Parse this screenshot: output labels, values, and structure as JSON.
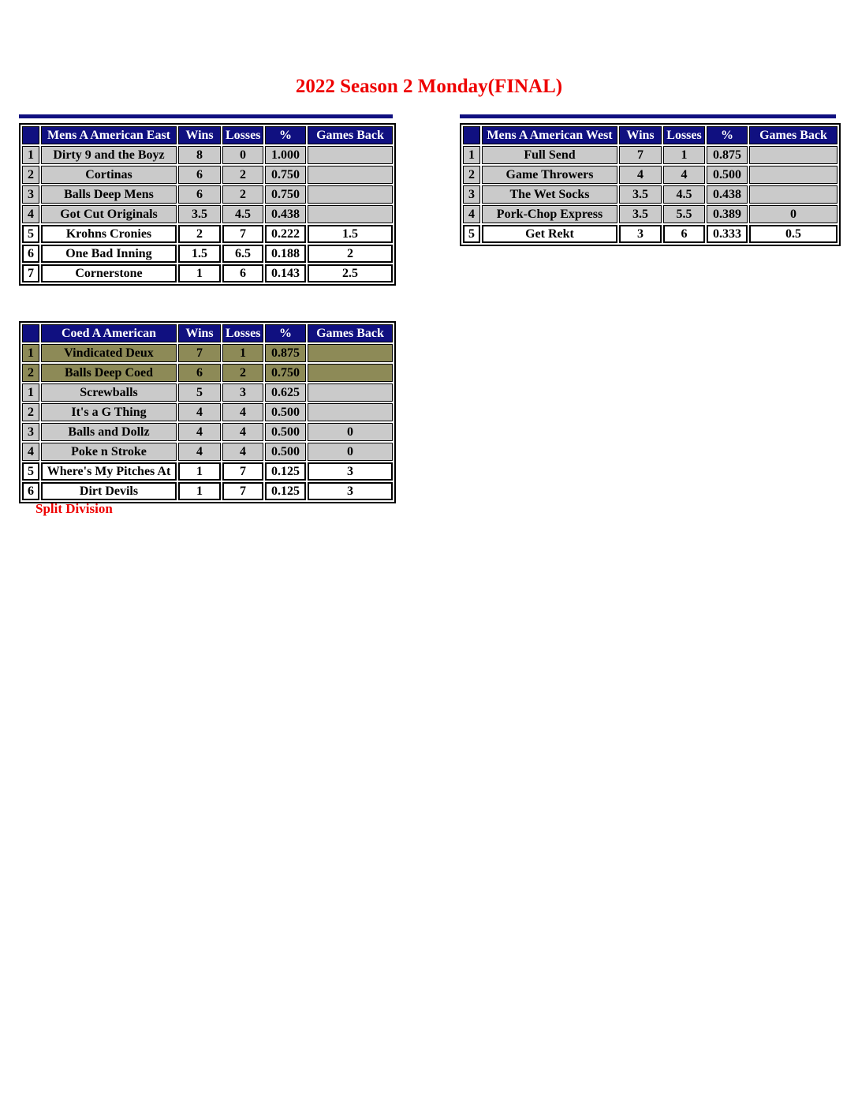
{
  "title": "2022 Season 2 Monday(FINAL)",
  "footnote": "Split Division",
  "colors": {
    "header_bg": "#101080",
    "header_text": "#ffffff",
    "row_gray": "#cacaca",
    "row_olive": "#8d8a57",
    "row_white": "#ffffff",
    "accent_red": "#ee0000",
    "border": "#000000"
  },
  "column_headers": {
    "wins": "Wins",
    "losses": "Losses",
    "pct": "%",
    "games_back": "Games Back"
  },
  "tables": [
    {
      "id": "east",
      "name": "Mens A American East",
      "top_strip": true,
      "rows": [
        {
          "rank": "1",
          "team": "Dirty 9 and the Boyz",
          "wins": "8",
          "losses": "0",
          "pct": "1.000",
          "games_back": "",
          "style": "gray"
        },
        {
          "rank": "2",
          "team": "Cortinas",
          "wins": "6",
          "losses": "2",
          "pct": "0.750",
          "games_back": "",
          "style": "gray"
        },
        {
          "rank": "3",
          "team": "Balls Deep Mens",
          "wins": "6",
          "losses": "2",
          "pct": "0.750",
          "games_back": "",
          "style": "gray"
        },
        {
          "rank": "4",
          "team": "Got Cut Originals",
          "wins": "3.5",
          "losses": "4.5",
          "pct": "0.438",
          "games_back": "",
          "style": "gray"
        },
        {
          "rank": "5",
          "team": "Krohns Cronies",
          "wins": "2",
          "losses": "7",
          "pct": "0.222",
          "games_back": "1.5",
          "style": "white"
        },
        {
          "rank": "6",
          "team": "One Bad Inning",
          "wins": "1.5",
          "losses": "6.5",
          "pct": "0.188",
          "games_back": "2",
          "style": "white"
        },
        {
          "rank": "7",
          "team": "Cornerstone",
          "wins": "1",
          "losses": "6",
          "pct": "0.143",
          "games_back": "2.5",
          "style": "white"
        }
      ]
    },
    {
      "id": "west",
      "name": "Mens A American West",
      "top_strip": true,
      "rows": [
        {
          "rank": "1",
          "team": "Full Send",
          "wins": "7",
          "losses": "1",
          "pct": "0.875",
          "games_back": "",
          "style": "gray"
        },
        {
          "rank": "2",
          "team": "Game Throwers",
          "wins": "4",
          "losses": "4",
          "pct": "0.500",
          "games_back": "",
          "style": "gray"
        },
        {
          "rank": "3",
          "team": "The Wet Socks",
          "wins": "3.5",
          "losses": "4.5",
          "pct": "0.438",
          "games_back": "",
          "style": "gray"
        },
        {
          "rank": "4",
          "team": "Pork-Chop Express",
          "wins": "3.5",
          "losses": "5.5",
          "pct": "0.389",
          "games_back": "0",
          "style": "gray"
        },
        {
          "rank": "5",
          "team": "Get Rekt",
          "wins": "3",
          "losses": "6",
          "pct": "0.333",
          "games_back": "0.5",
          "style": "white"
        }
      ]
    },
    {
      "id": "coed",
      "name": "Coed A American",
      "top_strip": false,
      "rows": [
        {
          "rank": "1",
          "team": "Vindicated Deux",
          "wins": "7",
          "losses": "1",
          "pct": "0.875",
          "games_back": "",
          "style": "olive"
        },
        {
          "rank": "2",
          "team": "Balls Deep Coed",
          "wins": "6",
          "losses": "2",
          "pct": "0.750",
          "games_back": "",
          "style": "olive"
        },
        {
          "rank": "1",
          "team": "Screwballs",
          "wins": "5",
          "losses": "3",
          "pct": "0.625",
          "games_back": "",
          "style": "gray"
        },
        {
          "rank": "2",
          "team": "It's a G Thing",
          "wins": "4",
          "losses": "4",
          "pct": "0.500",
          "games_back": "",
          "style": "gray"
        },
        {
          "rank": "3",
          "team": "Balls and Dollz",
          "wins": "4",
          "losses": "4",
          "pct": "0.500",
          "games_back": "0",
          "style": "gray"
        },
        {
          "rank": "4",
          "team": "Poke n Stroke",
          "wins": "4",
          "losses": "4",
          "pct": "0.500",
          "games_back": "0",
          "style": "gray"
        },
        {
          "rank": "5",
          "team": "Where's My Pitches At",
          "wins": "1",
          "losses": "7",
          "pct": "0.125",
          "games_back": "3",
          "style": "white"
        },
        {
          "rank": "6",
          "team": "Dirt Devils",
          "wins": "1",
          "losses": "7",
          "pct": "0.125",
          "games_back": "3",
          "style": "white"
        }
      ]
    }
  ]
}
